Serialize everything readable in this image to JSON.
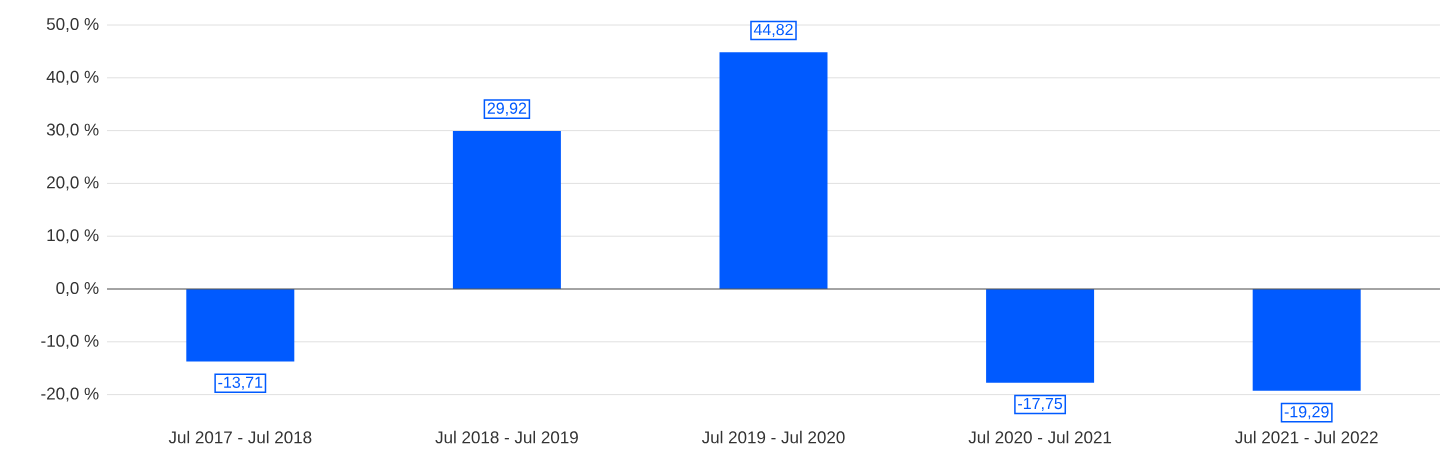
{
  "chart_data": {
    "type": "bar",
    "categories": [
      "Jul 2017 - Jul 2018",
      "Jul 2018 - Jul 2019",
      "Jul 2019 - Jul 2020",
      "Jul 2020 - Jul 2021",
      "Jul 2021 - Jul 2022"
    ],
    "values": [
      -13.71,
      29.92,
      44.82,
      -17.75,
      -19.29
    ],
    "value_labels": [
      "-13,71",
      "29,92",
      "44,82",
      "-17,75",
      "-19,29"
    ],
    "color": "#005aff",
    "ylim": [
      -25,
      50
    ],
    "yticks": [
      {
        "value": -20,
        "label": "-20,0 %"
      },
      {
        "value": -10,
        "label": "-10,0 %"
      },
      {
        "value": 0,
        "label": "0,0 %"
      },
      {
        "value": 10,
        "label": "10,0 %"
      },
      {
        "value": 20,
        "label": "20,0 %"
      },
      {
        "value": 30,
        "label": "30,0 %"
      },
      {
        "value": 40,
        "label": "40,0 %"
      },
      {
        "value": 50,
        "label": "50,0 %"
      }
    ],
    "grid": "y"
  }
}
